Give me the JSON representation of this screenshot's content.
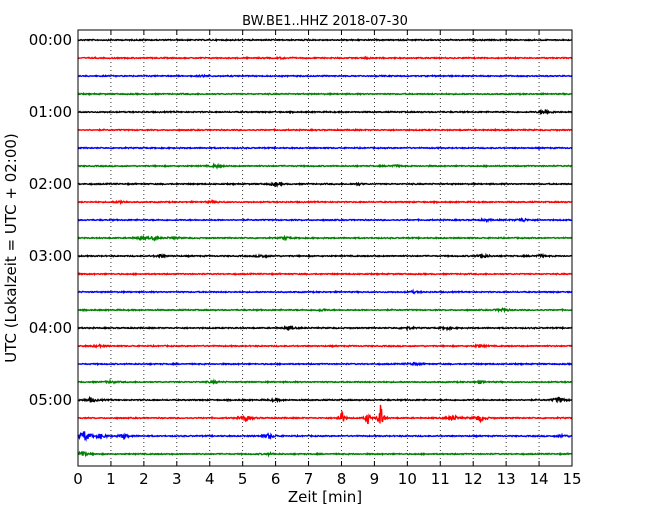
{
  "chart_data": {
    "type": "line",
    "title": "BW.BE1..HHZ 2018-07-30",
    "xlabel": "Zeit  [min]",
    "ylabel": "UTC (Lokalzeit = UTC + 02:00)",
    "xlim": [
      0,
      15
    ],
    "x_ticks": [
      "0",
      "1",
      "2",
      "3",
      "4",
      "5",
      "6",
      "7",
      "8",
      "9",
      "10",
      "11",
      "12",
      "13",
      "14",
      "15"
    ],
    "y_ticks": [
      "00:00",
      "01:00",
      "02:00",
      "03:00",
      "04:00",
      "05:00"
    ],
    "grid": "vertical dotted",
    "trace_interval_minutes": 15,
    "color_cycle": [
      "#000000",
      "#ff0000",
      "#0000ff",
      "#008000"
    ],
    "traces": [
      {
        "start": "00:00",
        "color": "#000000",
        "events": []
      },
      {
        "start": "00:15",
        "color": "#ff0000",
        "events": [
          {
            "t": 6.2,
            "a": 0.2
          },
          {
            "t": 8.8,
            "a": 0.2
          }
        ]
      },
      {
        "start": "00:30",
        "color": "#0000ff",
        "events": [
          {
            "t": 3.8,
            "a": 0.3
          }
        ]
      },
      {
        "start": "00:45",
        "color": "#008000",
        "events": []
      },
      {
        "start": "01:00",
        "color": "#000000",
        "events": [
          {
            "t": 14.2,
            "a": 0.8
          }
        ]
      },
      {
        "start": "01:15",
        "color": "#ff0000",
        "events": []
      },
      {
        "start": "01:30",
        "color": "#0000ff",
        "events": []
      },
      {
        "start": "01:45",
        "color": "#008000",
        "events": [
          {
            "t": 4.2,
            "a": 0.5
          },
          {
            "t": 9.6,
            "a": 0.3
          }
        ]
      },
      {
        "start": "02:00",
        "color": "#000000",
        "events": [
          {
            "t": 6.0,
            "a": 0.6
          },
          {
            "t": 8.5,
            "a": 0.3
          }
        ]
      },
      {
        "start": "02:15",
        "color": "#ff0000",
        "events": [
          {
            "t": 1.3,
            "a": 0.4
          },
          {
            "t": 4.1,
            "a": 0.4
          }
        ]
      },
      {
        "start": "02:30",
        "color": "#0000ff",
        "events": [
          {
            "t": 12.4,
            "a": 0.3
          },
          {
            "t": 13.5,
            "a": 0.6
          }
        ]
      },
      {
        "start": "02:45",
        "color": "#008000",
        "events": [
          {
            "t": 1.9,
            "a": 0.5
          },
          {
            "t": 2.3,
            "a": 0.4
          },
          {
            "t": 2.9,
            "a": 0.4
          },
          {
            "t": 6.3,
            "a": 0.4
          }
        ]
      },
      {
        "start": "03:00",
        "color": "#000000",
        "events": [
          {
            "t": 2.5,
            "a": 0.4
          },
          {
            "t": 5.6,
            "a": 0.5
          },
          {
            "t": 12.3,
            "a": 0.6
          },
          {
            "t": 14.0,
            "a": 0.4
          }
        ]
      },
      {
        "start": "03:15",
        "color": "#ff0000",
        "events": []
      },
      {
        "start": "03:30",
        "color": "#0000ff",
        "events": [
          {
            "t": 10.2,
            "a": 0.3
          }
        ]
      },
      {
        "start": "03:45",
        "color": "#008000",
        "events": [
          {
            "t": 7.4,
            "a": 0.3
          },
          {
            "t": 12.9,
            "a": 0.5
          }
        ]
      },
      {
        "start": "04:00",
        "color": "#000000",
        "events": [
          {
            "t": 6.4,
            "a": 0.5
          },
          {
            "t": 10.0,
            "a": 0.4
          },
          {
            "t": 11.2,
            "a": 0.4
          }
        ]
      },
      {
        "start": "04:15",
        "color": "#ff0000",
        "events": [
          {
            "t": 0.6,
            "a": 0.4
          },
          {
            "t": 12.2,
            "a": 0.5
          }
        ]
      },
      {
        "start": "04:30",
        "color": "#0000ff",
        "events": [
          {
            "t": 10.2,
            "a": 0.6
          }
        ]
      },
      {
        "start": "04:45",
        "color": "#008000",
        "events": [
          {
            "t": 1.0,
            "a": 0.4
          },
          {
            "t": 4.1,
            "a": 0.4
          },
          {
            "t": 12.2,
            "a": 0.4
          }
        ]
      },
      {
        "start": "05:00",
        "color": "#000000",
        "events": [
          {
            "t": 0.4,
            "a": 0.8
          },
          {
            "t": 6.0,
            "a": 0.4
          },
          {
            "t": 14.6,
            "a": 1.0
          }
        ]
      },
      {
        "start": "05:15",
        "color": "#ff0000",
        "events": [
          {
            "t": 5.1,
            "a": 1.0
          },
          {
            "t": 8.0,
            "a": 3.5
          },
          {
            "t": 8.8,
            "a": 2.5
          },
          {
            "t": 9.2,
            "a": 6.0
          },
          {
            "t": 11.4,
            "a": 0.8
          },
          {
            "t": 12.2,
            "a": 1.2
          }
        ]
      },
      {
        "start": "05:30",
        "color": "#0000ff",
        "events": [
          {
            "t": 0.2,
            "a": 1.8
          },
          {
            "t": 0.7,
            "a": 0.9
          },
          {
            "t": 1.4,
            "a": 0.8
          },
          {
            "t": 5.8,
            "a": 0.9
          },
          {
            "t": 14.7,
            "a": 0.5
          }
        ]
      },
      {
        "start": "05:45",
        "color": "#008000",
        "events": [
          {
            "t": 0.1,
            "a": 1.0
          },
          {
            "t": 5.8,
            "a": 0.3
          }
        ]
      }
    ]
  }
}
